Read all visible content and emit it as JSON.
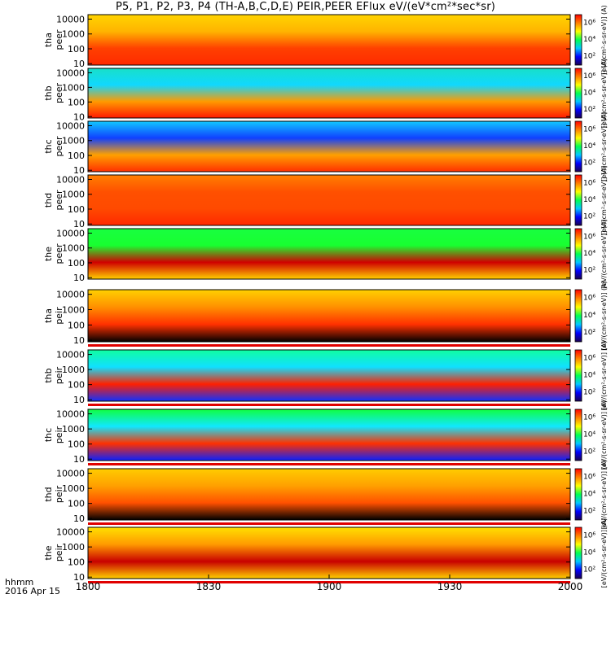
{
  "title": "P5, P1, P2, P3, P4 (TH-A,B,C,D,E) PEIR,PEER EFlux eV/(eV*cm²*sec*sr)",
  "chart_data": {
    "type": "heatmap",
    "x_tick_labels": [
      "1800",
      "1830",
      "1900",
      "1930",
      "2000"
    ],
    "x_corner_label": "hhmm",
    "date_label": "2016 Apr 15",
    "y_tick_labels": [
      "10",
      "100",
      "1000",
      "10000"
    ],
    "colorbar_label": "[eV/(cm²-s-sr-eV)] (A)",
    "colorbar_ticks": [
      "10²",
      "10⁴",
      "10⁶"
    ],
    "panels": [
      {
        "probe": "tha",
        "species": "peer"
      },
      {
        "probe": "thb",
        "species": "peer"
      },
      {
        "probe": "thc",
        "species": "peer"
      },
      {
        "probe": "thd",
        "species": "peer"
      },
      {
        "probe": "the",
        "species": "peer"
      },
      {
        "probe": "tha",
        "species": "peir"
      },
      {
        "probe": "thb",
        "species": "peir"
      },
      {
        "probe": "thc",
        "species": "peir"
      },
      {
        "probe": "thd",
        "species": "peir"
      },
      {
        "probe": "the",
        "species": "peir"
      }
    ]
  }
}
